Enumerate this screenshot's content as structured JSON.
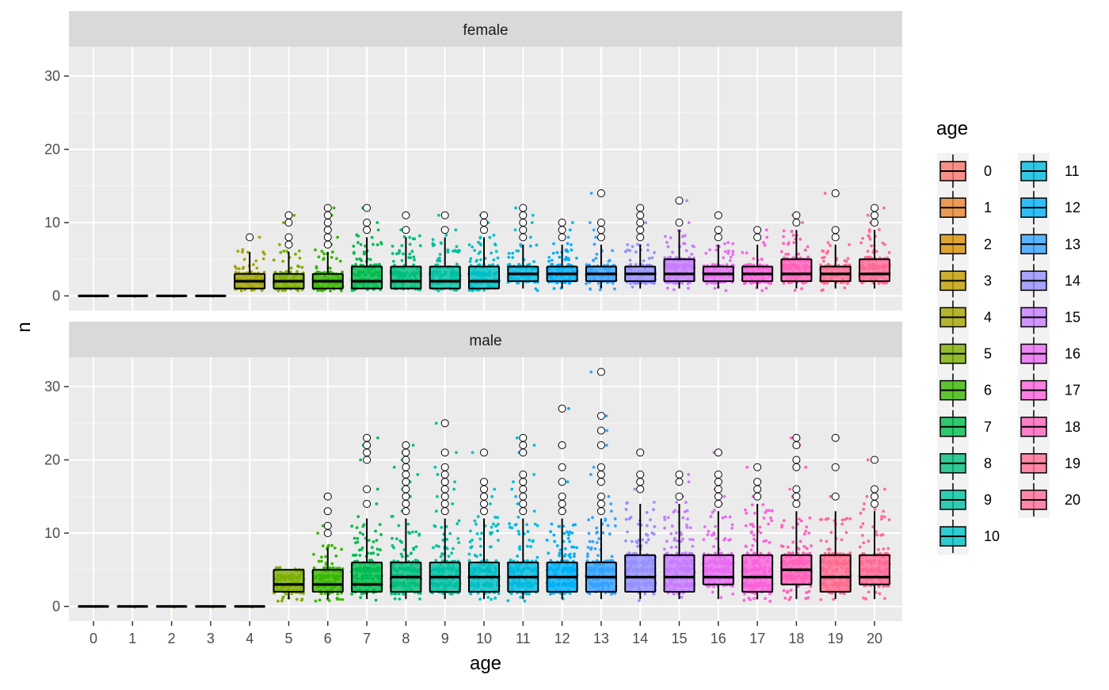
{
  "chart_data": {
    "type": "box",
    "xlabel": "age",
    "ylabel": "n",
    "categories": [
      "0",
      "1",
      "2",
      "3",
      "4",
      "5",
      "6",
      "7",
      "8",
      "9",
      "10",
      "11",
      "12",
      "13",
      "14",
      "15",
      "16",
      "17",
      "18",
      "19",
      "20"
    ],
    "ylim": [
      -2,
      34
    ],
    "y_ticks": [
      0,
      10,
      20,
      30
    ],
    "grid": true,
    "legend": {
      "title": "age",
      "position": "right",
      "columns": 2
    },
    "colors": [
      "#F8766D",
      "#EA8331",
      "#D89000",
      "#C09B00",
      "#A3A500",
      "#7CAE00",
      "#39B600",
      "#00BB4E",
      "#00BF7D",
      "#00C1A3",
      "#00BFC4",
      "#00BAE0",
      "#00B0F6",
      "#35A2FF",
      "#9590FF",
      "#C77CFF",
      "#E76BF3",
      "#FA62DB",
      "#FF62BC",
      "#FF6C91",
      "#FF6A98"
    ],
    "panels": [
      {
        "label": "female",
        "boxes": [
          {
            "age": "0",
            "q1": 0,
            "median": 0,
            "q3": 0,
            "whisker_low": 0,
            "whisker_high": 0,
            "outliers": []
          },
          {
            "age": "1",
            "q1": 0,
            "median": 0,
            "q3": 0,
            "whisker_low": 0,
            "whisker_high": 0,
            "outliers": []
          },
          {
            "age": "2",
            "q1": 0,
            "median": 0,
            "q3": 0,
            "whisker_low": 0,
            "whisker_high": 0,
            "outliers": []
          },
          {
            "age": "3",
            "q1": 0,
            "median": 0,
            "q3": 0,
            "whisker_low": 0,
            "whisker_high": 0,
            "outliers": []
          },
          {
            "age": "4",
            "q1": 1,
            "median": 2,
            "q3": 3,
            "whisker_low": 1,
            "whisker_high": 6,
            "outliers": [
              8
            ]
          },
          {
            "age": "5",
            "q1": 1,
            "median": 2,
            "q3": 3,
            "whisker_low": 1,
            "whisker_high": 6,
            "outliers": [
              7,
              8,
              10,
              11
            ]
          },
          {
            "age": "6",
            "q1": 1,
            "median": 2,
            "q3": 3,
            "whisker_low": 1,
            "whisker_high": 6,
            "outliers": [
              7,
              8,
              9,
              10,
              11,
              12
            ]
          },
          {
            "age": "7",
            "q1": 1,
            "median": 2,
            "q3": 4,
            "whisker_low": 1,
            "whisker_high": 8,
            "outliers": [
              9,
              10,
              12
            ]
          },
          {
            "age": "8",
            "q1": 1,
            "median": 2,
            "q3": 4,
            "whisker_low": 1,
            "whisker_high": 8,
            "outliers": [
              9,
              11
            ]
          },
          {
            "age": "9",
            "q1": 1,
            "median": 2,
            "q3": 4,
            "whisker_low": 1,
            "whisker_high": 8,
            "outliers": [
              9,
              11
            ]
          },
          {
            "age": "10",
            "q1": 1,
            "median": 2,
            "q3": 4,
            "whisker_low": 1,
            "whisker_high": 8,
            "outliers": [
              9,
              10,
              11
            ]
          },
          {
            "age": "11",
            "q1": 2,
            "median": 3,
            "q3": 4,
            "whisker_low": 1,
            "whisker_high": 7,
            "outliers": [
              8,
              9,
              10,
              11,
              12
            ]
          },
          {
            "age": "12",
            "q1": 2,
            "median": 3,
            "q3": 4,
            "whisker_low": 1,
            "whisker_high": 7,
            "outliers": [
              8,
              9,
              10
            ]
          },
          {
            "age": "13",
            "q1": 2,
            "median": 3,
            "q3": 4,
            "whisker_low": 1,
            "whisker_high": 7,
            "outliers": [
              8,
              9,
              10,
              14
            ]
          },
          {
            "age": "14",
            "q1": 2,
            "median": 3,
            "q3": 4,
            "whisker_low": 1,
            "whisker_high": 7,
            "outliers": [
              8,
              9,
              10,
              11,
              12
            ]
          },
          {
            "age": "15",
            "q1": 2,
            "median": 3,
            "q3": 5,
            "whisker_low": 1,
            "whisker_high": 9,
            "outliers": [
              10,
              13
            ]
          },
          {
            "age": "16",
            "q1": 2,
            "median": 3,
            "q3": 4,
            "whisker_low": 1,
            "whisker_high": 7,
            "outliers": [
              8,
              9,
              11
            ]
          },
          {
            "age": "17",
            "q1": 2,
            "median": 3,
            "q3": 4,
            "whisker_low": 1,
            "whisker_high": 7,
            "outliers": [
              8,
              9
            ]
          },
          {
            "age": "18",
            "q1": 2,
            "median": 3,
            "q3": 5,
            "whisker_low": 1,
            "whisker_high": 9,
            "outliers": [
              10,
              11
            ]
          },
          {
            "age": "19",
            "q1": 2,
            "median": 3,
            "q3": 4,
            "whisker_low": 1,
            "whisker_high": 7,
            "outliers": [
              8,
              9,
              14
            ]
          },
          {
            "age": "20",
            "q1": 2,
            "median": 3,
            "q3": 5,
            "whisker_low": 1,
            "whisker_high": 9,
            "outliers": [
              10,
              11,
              12
            ]
          }
        ]
      },
      {
        "label": "male",
        "boxes": [
          {
            "age": "0",
            "q1": 0,
            "median": 0,
            "q3": 0,
            "whisker_low": 0,
            "whisker_high": 0,
            "outliers": []
          },
          {
            "age": "1",
            "q1": 0,
            "median": 0,
            "q3": 0,
            "whisker_low": 0,
            "whisker_high": 0,
            "outliers": []
          },
          {
            "age": "2",
            "q1": 0,
            "median": 0,
            "q3": 0,
            "whisker_low": 0,
            "whisker_high": 0,
            "outliers": []
          },
          {
            "age": "3",
            "q1": 0,
            "median": 0,
            "q3": 0,
            "whisker_low": 0,
            "whisker_high": 0,
            "outliers": []
          },
          {
            "age": "4",
            "q1": 0,
            "median": 0,
            "q3": 0,
            "whisker_low": 0,
            "whisker_high": 0,
            "outliers": []
          },
          {
            "age": "5",
            "q1": 2,
            "median": 3,
            "q3": 5,
            "whisker_low": 1,
            "whisker_high": 5,
            "outliers": []
          },
          {
            "age": "6",
            "q1": 2,
            "median": 3,
            "q3": 5,
            "whisker_low": 1,
            "whisker_high": 8,
            "outliers": [
              10,
              11,
              13,
              15
            ]
          },
          {
            "age": "7",
            "q1": 2,
            "median": 3,
            "q3": 6,
            "whisker_low": 1,
            "whisker_high": 12,
            "outliers": [
              14,
              16,
              20,
              21,
              22,
              23
            ]
          },
          {
            "age": "8",
            "q1": 2,
            "median": 4,
            "q3": 6,
            "whisker_low": 1,
            "whisker_high": 12,
            "outliers": [
              13,
              14,
              15,
              16,
              17,
              18,
              19,
              20,
              21,
              22
            ]
          },
          {
            "age": "9",
            "q1": 2,
            "median": 4,
            "q3": 6,
            "whisker_low": 1,
            "whisker_high": 12,
            "outliers": [
              13,
              14,
              15,
              16,
              17,
              18,
              19,
              21,
              25
            ]
          },
          {
            "age": "10",
            "q1": 2,
            "median": 4,
            "q3": 6,
            "whisker_low": 1,
            "whisker_high": 12,
            "outliers": [
              13,
              14,
              15,
              16,
              17,
              21
            ]
          },
          {
            "age": "11",
            "q1": 2,
            "median": 4,
            "q3": 6,
            "whisker_low": 1,
            "whisker_high": 12,
            "outliers": [
              13,
              14,
              15,
              16,
              17,
              18,
              21,
              22,
              23
            ]
          },
          {
            "age": "12",
            "q1": 2,
            "median": 4,
            "q3": 6,
            "whisker_low": 1,
            "whisker_high": 12,
            "outliers": [
              13,
              14,
              15,
              17,
              19,
              22,
              27
            ]
          },
          {
            "age": "13",
            "q1": 2,
            "median": 4,
            "q3": 6,
            "whisker_low": 1,
            "whisker_high": 12,
            "outliers": [
              13,
              14,
              15,
              17,
              18,
              19,
              22,
              24,
              26,
              32
            ]
          },
          {
            "age": "14",
            "q1": 2,
            "median": 4,
            "q3": 7,
            "whisker_low": 1,
            "whisker_high": 14,
            "outliers": [
              16,
              17,
              18,
              21
            ]
          },
          {
            "age": "15",
            "q1": 2,
            "median": 4,
            "q3": 7,
            "whisker_low": 1,
            "whisker_high": 14,
            "outliers": [
              15,
              17,
              18
            ]
          },
          {
            "age": "16",
            "q1": 3,
            "median": 4,
            "q3": 7,
            "whisker_low": 1,
            "whisker_high": 13,
            "outliers": [
              14,
              15,
              16,
              17,
              18,
              21
            ]
          },
          {
            "age": "17",
            "q1": 2,
            "median": 4,
            "q3": 7,
            "whisker_low": 1,
            "whisker_high": 14,
            "outliers": [
              15,
              16,
              17,
              19
            ]
          },
          {
            "age": "18",
            "q1": 3,
            "median": 5,
            "q3": 7,
            "whisker_low": 1,
            "whisker_high": 13,
            "outliers": [
              14,
              15,
              16,
              19,
              20,
              22,
              23
            ]
          },
          {
            "age": "19",
            "q1": 2,
            "median": 4,
            "q3": 7,
            "whisker_low": 1,
            "whisker_high": 13,
            "outliers": [
              15,
              19,
              23
            ]
          },
          {
            "age": "20",
            "q1": 3,
            "median": 4,
            "q3": 7,
            "whisker_low": 1,
            "whisker_high": 13,
            "outliers": [
              14,
              15,
              16,
              20
            ]
          }
        ]
      }
    ]
  }
}
